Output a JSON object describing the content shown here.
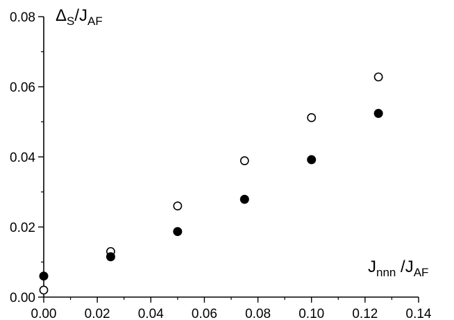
{
  "chart_data": {
    "type": "scatter",
    "xlim": [
      0.0,
      0.14
    ],
    "ylim": [
      0.0,
      0.08
    ],
    "x_ticks": [
      "0.00",
      "0.02",
      "0.04",
      "0.06",
      "0.08",
      "0.10",
      "0.12",
      "0.14"
    ],
    "y_ticks": [
      "0.00",
      "0.02",
      "0.04",
      "0.06",
      "0.08"
    ],
    "ylabel": {
      "main": "Δ",
      "sub1": "S",
      "mid": "/J",
      "sub2": "AF"
    },
    "xlabel": {
      "main": "J",
      "sub1": "nnn",
      "mid": " /J",
      "sub2": "AF"
    },
    "grid": false,
    "legend": "none",
    "series": [
      {
        "marker": "open-circle",
        "color": "#000000",
        "x": [
          0.0,
          0.025,
          0.05,
          0.075,
          0.1,
          0.125
        ],
        "y": [
          0.002,
          0.013,
          0.026,
          0.0389,
          0.0512,
          0.0628
        ]
      },
      {
        "marker": "filled-circle",
        "color": "#000000",
        "x": [
          0.0,
          0.025,
          0.05,
          0.075,
          0.1,
          0.125
        ],
        "y": [
          0.006,
          0.0115,
          0.0187,
          0.0279,
          0.0392,
          0.0524
        ]
      }
    ]
  }
}
